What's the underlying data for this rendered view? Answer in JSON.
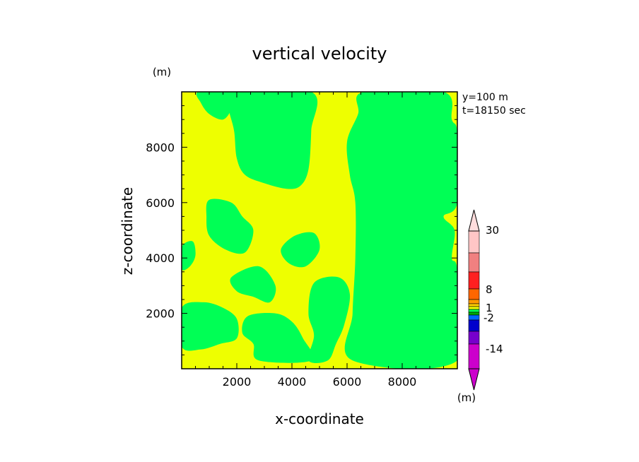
{
  "chart_data": {
    "type": "heatmap",
    "title": "vertical velocity",
    "xlabel": "x-coordinate",
    "ylabel": "z-coordinate",
    "x_unit": "(m)",
    "y_unit": "(m)",
    "colorbar_unit": "(m)",
    "info": [
      "y=100 m",
      "t=18150 sec"
    ],
    "xlim": [
      0,
      10000
    ],
    "ylim": [
      0,
      10000
    ],
    "xticks": [
      2000,
      4000,
      6000,
      8000
    ],
    "yticks": [
      2000,
      4000,
      6000,
      8000
    ],
    "field_colors": {
      "green": "#00ff55",
      "yellow": "#eeff00"
    },
    "field_description": "Filled contour field dominated by two bands: green (slightly negative / near zero) and yellow (slightly positive / near zero).",
    "green_regions": [
      {
        "points": [
          [
            600,
            10000
          ],
          [
            1800,
            10000
          ],
          [
            1800,
            9400
          ],
          [
            1500,
            9000
          ],
          [
            1000,
            9200
          ],
          [
            700,
            9600
          ]
        ]
      },
      {
        "points": [
          [
            1700,
            10000
          ],
          [
            4700,
            10000
          ],
          [
            4700,
            8600
          ],
          [
            4600,
            7200
          ],
          [
            4300,
            6600
          ],
          [
            3800,
            6500
          ],
          [
            3000,
            6700
          ],
          [
            2300,
            7000
          ],
          [
            2000,
            7600
          ],
          [
            1900,
            8600
          ],
          [
            1700,
            9400
          ]
        ]
      },
      {
        "points": [
          [
            6600,
            10000
          ],
          [
            9500,
            10000
          ],
          [
            9800,
            9000
          ],
          [
            10000,
            8500
          ],
          [
            10000,
            6000
          ],
          [
            9500,
            5500
          ],
          [
            9900,
            5000
          ],
          [
            9800,
            4000
          ],
          [
            10000,
            3500
          ],
          [
            10000,
            300
          ],
          [
            6200,
            300
          ],
          [
            6200,
            2000
          ],
          [
            6300,
            4000
          ],
          [
            6300,
            6000
          ],
          [
            6100,
            7000
          ],
          [
            6000,
            8200
          ],
          [
            6400,
            9200
          ]
        ]
      },
      {
        "points": [
          [
            1000,
            6100
          ],
          [
            1800,
            6000
          ],
          [
            2200,
            5500
          ],
          [
            2600,
            5000
          ],
          [
            2300,
            4200
          ],
          [
            1600,
            4300
          ],
          [
            1000,
            4800
          ],
          [
            900,
            5500
          ]
        ]
      },
      {
        "points": [
          [
            0,
            4400
          ],
          [
            400,
            4600
          ],
          [
            500,
            4100
          ],
          [
            300,
            3700
          ],
          [
            0,
            3600
          ]
        ]
      },
      {
        "points": [
          [
            0,
            2200
          ],
          [
            800,
            2400
          ],
          [
            1500,
            2200
          ],
          [
            2000,
            1800
          ],
          [
            2000,
            1100
          ],
          [
            1400,
            900
          ],
          [
            700,
            700
          ],
          [
            0,
            800
          ]
        ]
      },
      {
        "points": [
          [
            1800,
            3300
          ],
          [
            2800,
            3700
          ],
          [
            3400,
            3000
          ],
          [
            3200,
            2400
          ],
          [
            2600,
            2600
          ],
          [
            2000,
            2800
          ]
        ]
      },
      {
        "points": [
          [
            2400,
            1900
          ],
          [
            3400,
            2000
          ],
          [
            4000,
            1700
          ],
          [
            4400,
            1100
          ],
          [
            4700,
            300
          ],
          [
            2800,
            300
          ],
          [
            2600,
            900
          ],
          [
            2200,
            1300
          ]
        ]
      },
      {
        "points": [
          [
            4800,
            3100
          ],
          [
            5700,
            3300
          ],
          [
            6100,
            2700
          ],
          [
            5900,
            1600
          ],
          [
            5600,
            900
          ],
          [
            5300,
            300
          ],
          [
            4600,
            300
          ],
          [
            4800,
            1200
          ],
          [
            4600,
            2000
          ]
        ]
      },
      {
        "points": [
          [
            3600,
            4300
          ],
          [
            4100,
            4800
          ],
          [
            4800,
            4900
          ],
          [
            5000,
            4300
          ],
          [
            4500,
            3700
          ],
          [
            3900,
            3800
          ]
        ]
      }
    ],
    "colorbar": {
      "labels": [
        "30",
        "8",
        "1",
        "-2",
        "-14"
      ],
      "segments": [
        {
          "color": "#ffc6c6"
        },
        {
          "color": "#f08080"
        },
        {
          "color": "#ff2020"
        },
        {
          "color": "#ff6600"
        },
        {
          "color": "#ff9900"
        },
        {
          "color": "#ffd000"
        },
        {
          "color": "#eeff00"
        },
        {
          "color": "#00ff55"
        },
        {
          "color": "#00aa00"
        },
        {
          "color": "#0066ff"
        },
        {
          "color": "#0000cc"
        },
        {
          "color": "#7700cc"
        },
        {
          "color": "#cc00cc"
        }
      ],
      "top_arrow_color": "#ffdddd",
      "bottom_arrow_color": "#cc00cc"
    }
  }
}
